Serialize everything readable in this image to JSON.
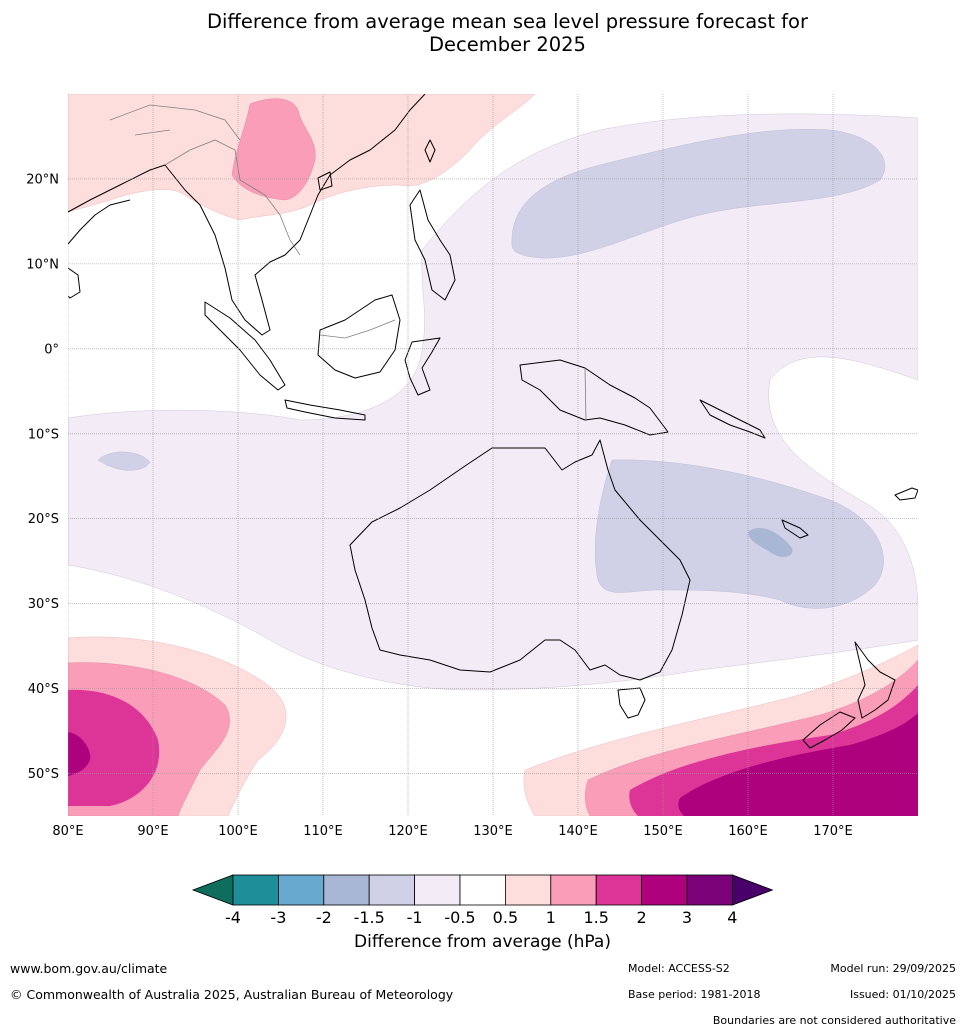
{
  "title": {
    "line1": "Difference from average mean sea level pressure forecast for",
    "line2": "December 2025"
  },
  "map": {
    "lon_labels": [
      "80°E",
      "90°E",
      "100°E",
      "110°E",
      "120°E",
      "130°E",
      "140°E",
      "150°E",
      "160°E",
      "170°E"
    ],
    "lat_labels": [
      "20°N",
      "10°N",
      "0°",
      "10°S",
      "20°S",
      "30°S",
      "40°S",
      "50°S"
    ],
    "lon_values": [
      80,
      90,
      100,
      110,
      120,
      130,
      140,
      150,
      160,
      170
    ],
    "lat_values": [
      20,
      10,
      0,
      -10,
      -20,
      -30,
      -40,
      -50
    ],
    "lon_range": [
      80,
      180
    ],
    "lat_range": [
      -55,
      30
    ]
  },
  "colorbar": {
    "title": "Difference from average (hPa)",
    "tick_labels": [
      "-4",
      "-3",
      "-2",
      "-1.5",
      "-1",
      "-0.5",
      "0.5",
      "1",
      "1.5",
      "2",
      "3",
      "4"
    ],
    "colors": [
      "#0e6d5c",
      "#1e8f99",
      "#68a9cf",
      "#a8b8d4",
      "#d0d1e6",
      "#f3ebf5",
      "#ffffff",
      "#fddedd",
      "#f99db8",
      "#dd3497",
      "#ae017e",
      "#7a0177",
      "#49006a"
    ]
  },
  "footer": {
    "website": "www.bom.gov.au/climate",
    "copyright": "© Commonwealth of Australia 2025, Australian Bureau of Meteorology",
    "model": "Model: ACCESS-S2",
    "base_period": "Base period: 1981-2018",
    "model_run": "Model run: 29/09/2025",
    "issued": "Issued: 01/10/2025",
    "disclaimer": "Boundaries are not considered authoritative"
  }
}
